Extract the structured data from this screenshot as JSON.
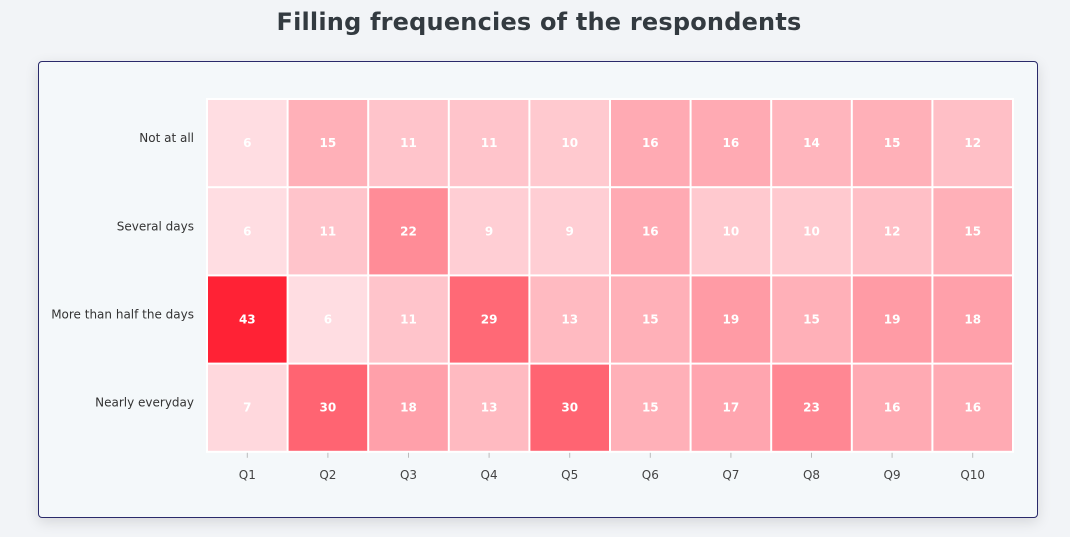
{
  "chart_data": {
    "type": "heatmap",
    "title": "Filling frequencies of the respondents",
    "x_categories": [
      "Q1",
      "Q2",
      "Q3",
      "Q4",
      "Q5",
      "Q6",
      "Q7",
      "Q8",
      "Q9",
      "Q10"
    ],
    "y_categories": [
      "Not at all",
      "Several days",
      "More than half the days",
      "Nearly everyday"
    ],
    "values": [
      [
        6,
        15,
        11,
        11,
        10,
        16,
        16,
        14,
        15,
        12
      ],
      [
        6,
        11,
        22,
        9,
        9,
        16,
        10,
        10,
        12,
        15
      ],
      [
        43,
        6,
        11,
        29,
        13,
        15,
        19,
        15,
        19,
        18
      ],
      [
        7,
        30,
        18,
        13,
        30,
        15,
        17,
        23,
        16,
        16
      ]
    ],
    "color_min": "#ffdde2",
    "color_max": "#ff2235"
  }
}
